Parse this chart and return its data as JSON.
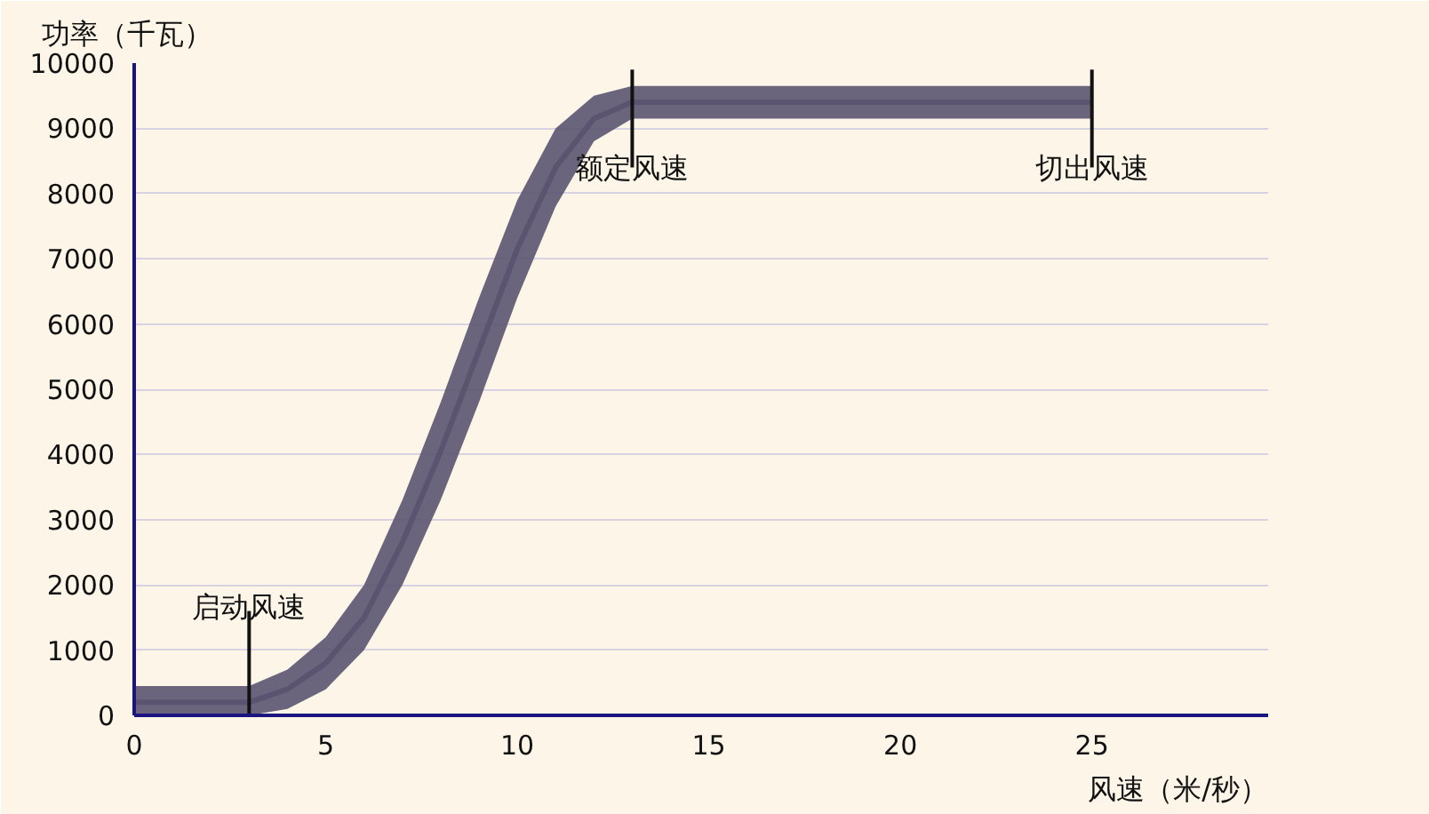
{
  "chart_data": {
    "type": "line",
    "xlabel": "风速（米/秒）",
    "ylabel": "功率（千瓦）",
    "xlim": [
      0,
      29.6
    ],
    "ylim": [
      0,
      10000
    ],
    "xticks": [
      0,
      5,
      10,
      15,
      20,
      25
    ],
    "yticks": [
      0,
      1000,
      2000,
      3000,
      4000,
      5000,
      6000,
      7000,
      8000,
      9000,
      10000
    ],
    "grid": "y",
    "marker": "none",
    "line_style": "solid",
    "series": [
      {
        "color": "#5a5470",
        "x": [
          0,
          3,
          4,
          5,
          6,
          7,
          8,
          9,
          10,
          11,
          12,
          13,
          25
        ],
        "values": [
          200,
          200,
          400,
          800,
          1500,
          2650,
          4050,
          5600,
          7150,
          8400,
          9150,
          9400,
          9400
        ],
        "lower": [
          0,
          0,
          100,
          400,
          1000,
          2000,
          3300,
          4800,
          6400,
          7800,
          8800,
          9150,
          9150
        ],
        "upper": [
          450,
          450,
          700,
          1200,
          2000,
          3300,
          4800,
          6400,
          7900,
          9000,
          9500,
          9650,
          9650
        ]
      }
    ],
    "annotations": [
      {
        "text": "启动风速",
        "x": 3,
        "y": 200
      },
      {
        "text": "额定风速",
        "x": 13,
        "y": 9400
      },
      {
        "text": "切出风速",
        "x": 25,
        "y": 9400
      }
    ]
  }
}
